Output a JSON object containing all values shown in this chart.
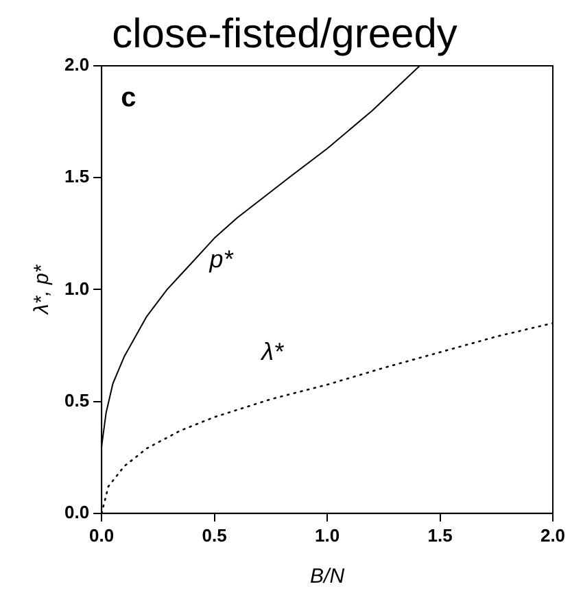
{
  "chart_data": {
    "type": "line",
    "title": "close-fisted/greedy",
    "xlabel": "B/N",
    "ylabel": "λ*, p*",
    "annotations": [
      "c"
    ],
    "xlim": [
      0,
      2
    ],
    "ylim": [
      0,
      2
    ],
    "xticks": [
      {
        "value": 0,
        "label": "0.0"
      },
      {
        "value": 0.5,
        "label": "0.5"
      },
      {
        "value": 1,
        "label": "1.0"
      },
      {
        "value": 1.5,
        "label": "1.5"
      },
      {
        "value": 2,
        "label": "2.0"
      }
    ],
    "yticks": [
      {
        "value": 0,
        "label": "0.0"
      },
      {
        "value": 0.5,
        "label": "0.5"
      },
      {
        "value": 1,
        "label": "1.0"
      },
      {
        "value": 1.5,
        "label": "1.5"
      },
      {
        "value": 2,
        "label": "2.0"
      }
    ],
    "grid": false,
    "legend": false,
    "marker": "none",
    "series": [
      {
        "name": "p*",
        "color": "#000000",
        "line_style": "solid",
        "x": [
          0,
          0.02,
          0.05,
          0.1,
          0.2,
          0.29,
          0.4,
          0.5,
          0.6,
          0.83,
          1.0,
          1.2,
          1.41
        ],
        "values": [
          0.3,
          0.45,
          0.58,
          0.7,
          0.88,
          1.0,
          1.12,
          1.23,
          1.32,
          1.5,
          1.63,
          1.8,
          2.0
        ]
      },
      {
        "name": "λ*",
        "color": "#000000",
        "line_style": "dotted",
        "x": [
          0,
          0.03,
          0.1,
          0.2,
          0.35,
          0.5,
          0.75,
          1.0,
          1.25,
          1.5,
          1.75,
          2.0
        ],
        "values": [
          0,
          0.12,
          0.21,
          0.29,
          0.37,
          0.43,
          0.51,
          0.575,
          0.65,
          0.72,
          0.79,
          0.85
        ]
      }
    ]
  }
}
